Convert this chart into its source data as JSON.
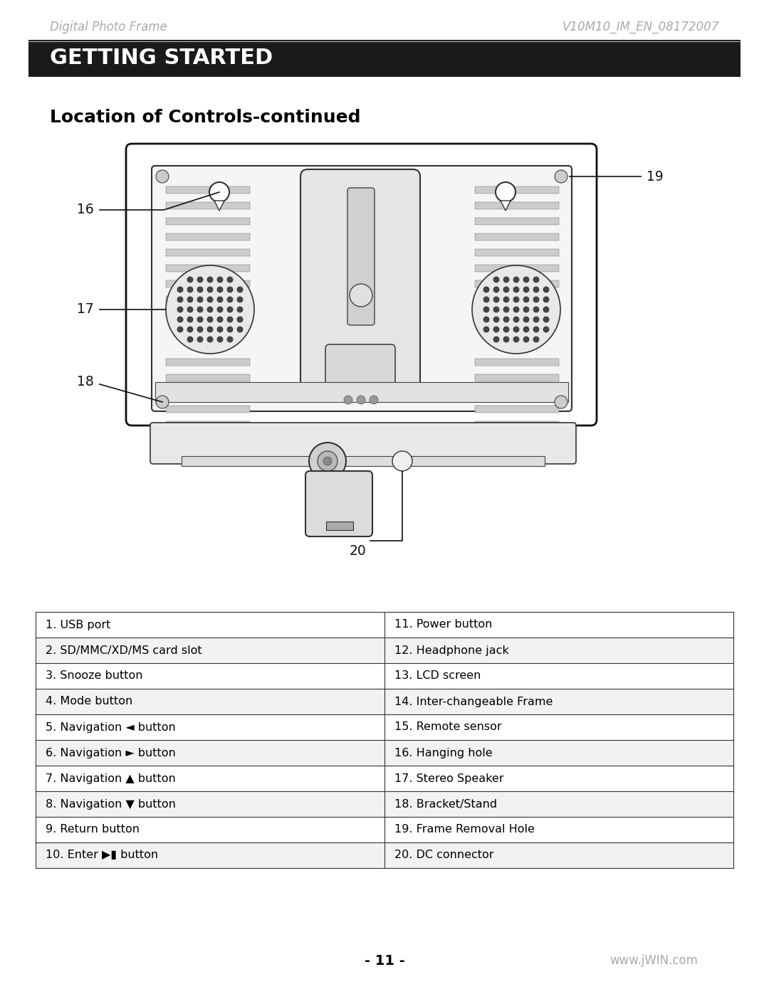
{
  "header_left": "Digital Photo Frame",
  "header_right": "V10M10_IM_EN_08172007",
  "banner_text": "GETTING STARTED",
  "banner_bg": "#1a1a1a",
  "banner_fg": "#ffffff",
  "section_title": "Location of Controls-continued",
  "table_left": [
    "1. USB port",
    "2. SD/MMC/XD/MS card slot",
    "3. Snooze button",
    "4. Mode button",
    "5. Navigation ◄ button",
    "6. Navigation ► button",
    "7. Navigation ▲ button",
    "8. Navigation ▼ button",
    "9. Return button",
    "10. Enter ▶▮ button"
  ],
  "table_right": [
    "11. Power button",
    "12. Headphone jack",
    "13. LCD screen",
    "14. Inter-changeable Frame",
    "15. Remote sensor",
    "16. Hanging hole",
    "17. Stereo Speaker",
    "18. Bracket/Stand",
    "19. Frame Removal Hole",
    "20. DC connector"
  ],
  "page_number": "- 11 -",
  "website": "www.jWIN.com",
  "bg_color": "#ffffff",
  "text_color": "#000000"
}
